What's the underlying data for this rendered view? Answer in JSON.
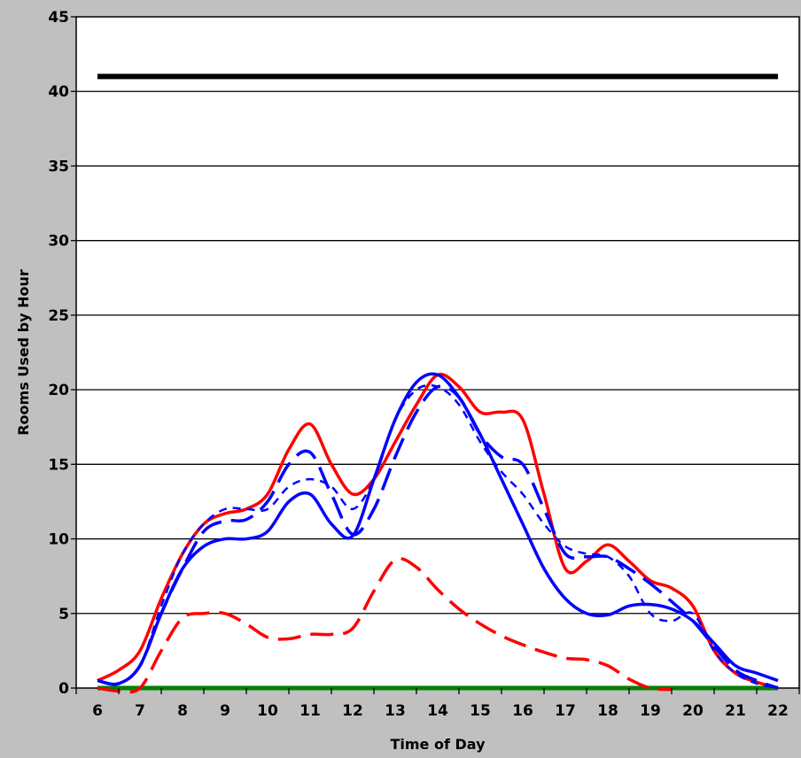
{
  "chart_data": {
    "type": "line",
    "title": "",
    "xlabel": "Time of Day",
    "ylabel": "Rooms Used by Hour",
    "xlim": [
      5.5,
      22.5
    ],
    "ylim": [
      0,
      45
    ],
    "x_ticks": [
      6,
      7,
      8,
      9,
      10,
      11,
      12,
      13,
      14,
      15,
      16,
      17,
      18,
      19,
      20,
      21,
      22
    ],
    "y_ticks": [
      0,
      5,
      10,
      15,
      20,
      25,
      30,
      35,
      40,
      45
    ],
    "grid": {
      "horizontal": true,
      "vertical": false
    },
    "legend": "none",
    "colors": {
      "background": "#c0c0c0",
      "plot": "#ffffff",
      "black": "#000000",
      "blue": "#0000ff",
      "red": "#ff0000",
      "green": "#008000"
    },
    "series": [
      {
        "color": "#000000",
        "dash": "solid",
        "width": 6,
        "x": [
          6,
          22
        ],
        "y": [
          41,
          41
        ]
      },
      {
        "color": "#008000",
        "dash": "solid",
        "width": 5,
        "x": [
          6,
          22
        ],
        "y": [
          0,
          0
        ]
      },
      {
        "color": "#ff0000",
        "dash": "solid",
        "width": 3.5,
        "x": [
          6,
          6.5,
          7,
          7.5,
          8,
          8.5,
          9,
          9.5,
          10,
          10.5,
          11,
          11.5,
          12,
          12.5,
          13,
          13.5,
          14,
          14.5,
          15,
          15.5,
          16,
          16.5,
          17,
          17.5,
          18,
          18.5,
          19,
          19.5,
          20,
          20.5,
          21,
          21.5,
          22
        ],
        "y": [
          0.5,
          1.2,
          2.5,
          6,
          9,
          11,
          11.7,
          12,
          13,
          16,
          17.7,
          15,
          13,
          14,
          16.5,
          19,
          21,
          20.2,
          18.5,
          18.5,
          18,
          13,
          8,
          8.5,
          9.6,
          8.5,
          7.2,
          6.7,
          5.5,
          2.5,
          1,
          0.4,
          0
        ]
      },
      {
        "color": "#0000ff",
        "dash": "solid",
        "width": 3.5,
        "x": [
          6,
          6.5,
          7,
          7.5,
          8,
          8.5,
          9,
          9.5,
          10,
          10.5,
          11,
          11.5,
          12,
          12.5,
          13,
          13.5,
          14,
          14.5,
          15,
          15.5,
          16,
          16.5,
          17,
          17.5,
          18,
          18.5,
          19,
          19.5,
          20,
          20.5,
          21,
          21.5,
          22
        ],
        "y": [
          0.5,
          0.3,
          1.5,
          5,
          8,
          9.5,
          10,
          10,
          10.5,
          12.5,
          13,
          11,
          10.2,
          14,
          18,
          20.5,
          21,
          19.5,
          17,
          14,
          11,
          8,
          6,
          5,
          4.9,
          5.5,
          5.6,
          5.3,
          4.5,
          3,
          1.5,
          1,
          0.5
        ]
      },
      {
        "color": "#0000ff",
        "dash": "longdash",
        "width": 3.5,
        "x": [
          6,
          6.5,
          7,
          7.5,
          8,
          8.5,
          9,
          9.5,
          10,
          10.5,
          11,
          11.5,
          12,
          12.5,
          13,
          13.5,
          14,
          14.5,
          15,
          15.5,
          16,
          16.5,
          17,
          17.5,
          18,
          18.5,
          19,
          19.5,
          20,
          20.5,
          21,
          21.5,
          22
        ],
        "y": [
          0.5,
          0.3,
          1.5,
          5,
          8,
          10.5,
          11.2,
          11.3,
          12.5,
          15,
          15.8,
          13,
          10.3,
          12,
          15.5,
          18.5,
          20.2,
          19.5,
          17,
          15.5,
          15,
          12,
          9,
          8.8,
          8.8,
          8,
          7,
          5.8,
          4.5,
          2.8,
          1.2,
          0.5,
          0
        ]
      },
      {
        "color": "#0000ff",
        "dash": "shortdash",
        "width": 2.5,
        "x": [
          6,
          6.5,
          7,
          7.5,
          8,
          8.5,
          9,
          9.5,
          10,
          10.5,
          11,
          11.5,
          12,
          12.5,
          13,
          13.5,
          14,
          14.5,
          15,
          15.5,
          16,
          16.5,
          17,
          17.5,
          18,
          18.5,
          19,
          19.5,
          20,
          20.5,
          21,
          21.5,
          22
        ],
        "y": [
          0.5,
          0.3,
          1.5,
          5.5,
          9,
          11,
          12,
          12,
          12,
          13.5,
          14,
          13.5,
          12,
          14,
          18,
          20,
          20.2,
          19,
          16.5,
          14.5,
          13,
          11,
          9.5,
          9,
          8.8,
          7.5,
          5,
          4.5,
          5,
          2.5,
          1,
          0.3,
          0
        ]
      },
      {
        "color": "#ff0000",
        "dash": "longdash",
        "width": 3.5,
        "x": [
          6,
          6.5,
          7,
          7.5,
          8,
          8.5,
          9,
          9.5,
          10,
          10.5,
          11,
          11.5,
          12,
          12.5,
          13,
          13.5,
          14,
          14.5,
          15,
          15.5,
          16,
          16.5,
          17,
          17.5,
          18,
          18.5,
          19,
          19.5
        ],
        "y": [
          0,
          -0.2,
          0,
          2.5,
          4.7,
          5,
          5,
          4.3,
          3.4,
          3.3,
          3.6,
          3.6,
          4,
          6.5,
          8.6,
          8.1,
          6.6,
          5.3,
          4.3,
          3.5,
          2.9,
          2.4,
          2,
          1.9,
          1.5,
          0.6,
          0,
          -0.1
        ]
      }
    ]
  }
}
